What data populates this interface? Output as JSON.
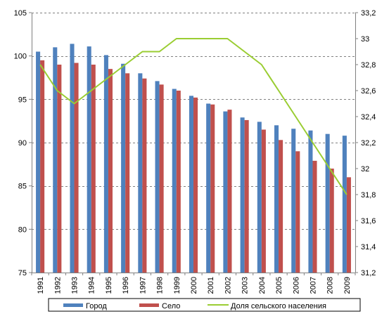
{
  "chart_data": {
    "type": "bar",
    "categories": [
      "1991",
      "1992",
      "1993",
      "1994",
      "1995",
      "1996",
      "1997",
      "1998",
      "1999",
      "2000",
      "2001",
      "2002",
      "2003",
      "2004",
      "2005",
      "2006",
      "2007",
      "2008",
      "2009"
    ],
    "series": [
      {
        "name": "Город",
        "kind": "bar",
        "axis": "left",
        "color": "#4f81bd",
        "values": [
          100.5,
          101.0,
          101.4,
          101.1,
          100.1,
          99.1,
          98.0,
          97.1,
          96.2,
          95.4,
          94.5,
          93.6,
          92.9,
          92.4,
          92.0,
          91.6,
          91.4,
          91.0,
          90.8
        ]
      },
      {
        "name": "Село",
        "kind": "bar",
        "axis": "left",
        "color": "#c0504d",
        "values": [
          99.5,
          99.0,
          99.2,
          99.0,
          98.5,
          98.0,
          97.4,
          96.7,
          96.0,
          95.2,
          94.4,
          93.8,
          92.6,
          91.5,
          90.3,
          89.0,
          87.9,
          87.0,
          86.0
        ]
      },
      {
        "name": "Доля сельского населения",
        "kind": "line",
        "axis": "right",
        "color": "#9acd32",
        "values": [
          32.8,
          32.6,
          32.5,
          32.6,
          32.7,
          32.8,
          32.9,
          32.9,
          33.0,
          33.0,
          33.0,
          33.0,
          32.9,
          32.8,
          32.6,
          32.4,
          32.2,
          32.0,
          31.8
        ]
      }
    ],
    "y_left": {
      "ylim": [
        75,
        105
      ],
      "ticks": [
        "75",
        "80",
        "85",
        "90",
        "95",
        "100",
        "105"
      ]
    },
    "y_right": {
      "ylim": [
        31.2,
        33.2
      ],
      "ticks": [
        "31,2",
        "31,4",
        "31,6",
        "31,8",
        "32",
        "32,2",
        "32,4",
        "32,6",
        "32,8",
        "33",
        "33,2"
      ]
    },
    "grid": true,
    "legend_position": "bottom",
    "title": "",
    "xlabel": "",
    "ylabel": ""
  }
}
